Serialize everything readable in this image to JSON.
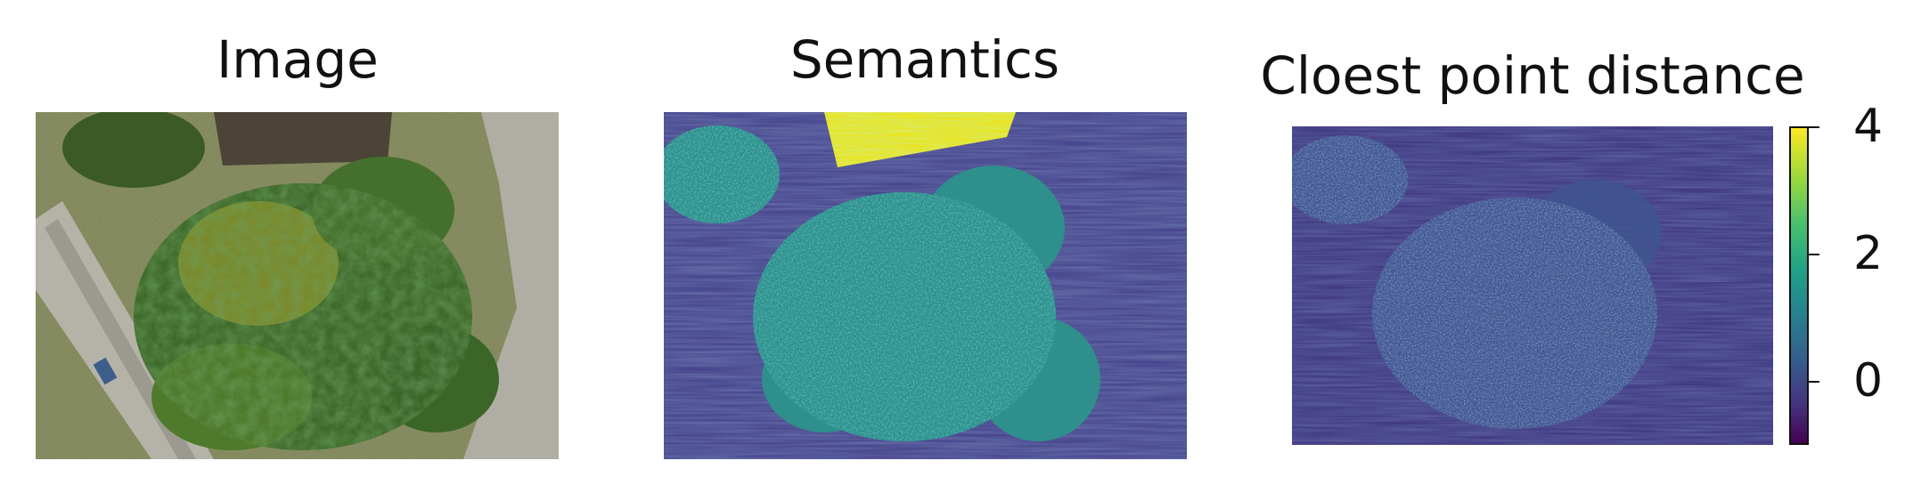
{
  "panels": [
    {
      "title": "Image"
    },
    {
      "title": "Semantics"
    },
    {
      "title": "Cloest point distance"
    }
  ],
  "colorbar": {
    "ticks": [
      "4",
      "2",
      "0"
    ],
    "range": [
      -1,
      4
    ],
    "colormap": "viridis"
  },
  "colors": {
    "viridis_low": "#440154",
    "viridis_mid": "#21918c",
    "viridis_high": "#fde725"
  }
}
